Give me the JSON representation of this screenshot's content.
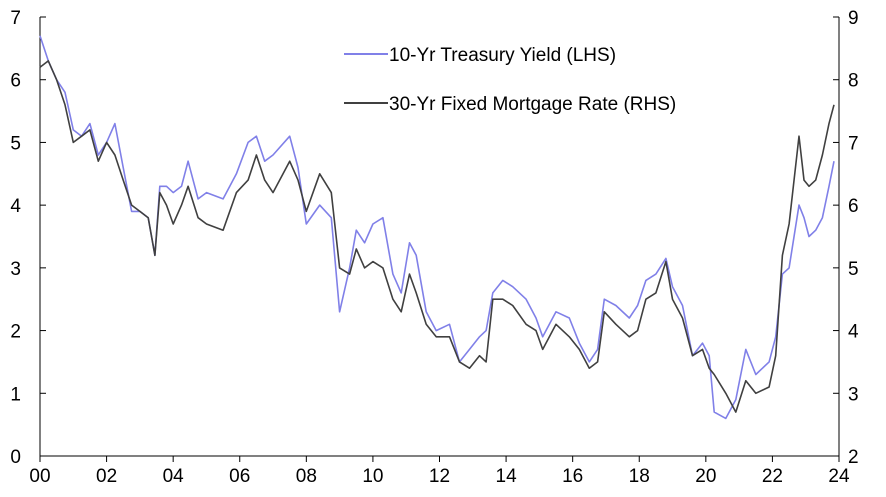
{
  "chart_data": {
    "type": "line",
    "x_unit": "year",
    "x_ticks": [
      {
        "value": 2000,
        "label": "00"
      },
      {
        "value": 2002,
        "label": "02"
      },
      {
        "value": 2004,
        "label": "04"
      },
      {
        "value": 2006,
        "label": "06"
      },
      {
        "value": 2008,
        "label": "08"
      },
      {
        "value": 2010,
        "label": "10"
      },
      {
        "value": 2012,
        "label": "12"
      },
      {
        "value": 2014,
        "label": "14"
      },
      {
        "value": 2016,
        "label": "16"
      },
      {
        "value": 2018,
        "label": "18"
      },
      {
        "value": 2020,
        "label": "20"
      },
      {
        "value": 2022,
        "label": "22"
      },
      {
        "value": 2024,
        "label": "24"
      }
    ],
    "xlim": [
      2000,
      2024
    ],
    "y_left": {
      "ylim": [
        0,
        7
      ],
      "ticks": [
        0,
        1,
        2,
        3,
        4,
        5,
        6,
        7
      ]
    },
    "y_right": {
      "ylim": [
        2,
        9
      ],
      "ticks": [
        2,
        3,
        4,
        5,
        6,
        7,
        8,
        9
      ]
    },
    "legend_position": "top-right",
    "grid": false,
    "series": [
      {
        "name": "10-Yr Treasury Yield (LHS)",
        "axis": "left",
        "color": "#8080e8",
        "points": [
          [
            2000.0,
            6.7
          ],
          [
            2000.25,
            6.3
          ],
          [
            2000.5,
            6.0
          ],
          [
            2000.75,
            5.8
          ],
          [
            2001.0,
            5.2
          ],
          [
            2001.25,
            5.1
          ],
          [
            2001.5,
            5.3
          ],
          [
            2001.75,
            4.8
          ],
          [
            2002.0,
            5.0
          ],
          [
            2002.25,
            5.3
          ],
          [
            2002.5,
            4.6
          ],
          [
            2002.75,
            3.9
          ],
          [
            2003.0,
            3.9
          ],
          [
            2003.25,
            3.8
          ],
          [
            2003.45,
            3.2
          ],
          [
            2003.6,
            4.3
          ],
          [
            2003.8,
            4.3
          ],
          [
            2004.0,
            4.2
          ],
          [
            2004.25,
            4.3
          ],
          [
            2004.45,
            4.7
          ],
          [
            2004.75,
            4.1
          ],
          [
            2005.0,
            4.2
          ],
          [
            2005.5,
            4.1
          ],
          [
            2005.9,
            4.5
          ],
          [
            2006.25,
            5.0
          ],
          [
            2006.5,
            5.1
          ],
          [
            2006.75,
            4.7
          ],
          [
            2007.0,
            4.8
          ],
          [
            2007.5,
            5.1
          ],
          [
            2007.75,
            4.6
          ],
          [
            2008.0,
            3.7
          ],
          [
            2008.4,
            4.0
          ],
          [
            2008.75,
            3.8
          ],
          [
            2009.0,
            2.3
          ],
          [
            2009.3,
            3.0
          ],
          [
            2009.5,
            3.6
          ],
          [
            2009.75,
            3.4
          ],
          [
            2010.0,
            3.7
          ],
          [
            2010.3,
            3.8
          ],
          [
            2010.6,
            2.9
          ],
          [
            2010.85,
            2.6
          ],
          [
            2011.1,
            3.4
          ],
          [
            2011.3,
            3.2
          ],
          [
            2011.6,
            2.3
          ],
          [
            2011.9,
            2.0
          ],
          [
            2012.3,
            2.1
          ],
          [
            2012.6,
            1.5
          ],
          [
            2012.9,
            1.7
          ],
          [
            2013.2,
            1.9
          ],
          [
            2013.4,
            2.0
          ],
          [
            2013.6,
            2.6
          ],
          [
            2013.9,
            2.8
          ],
          [
            2014.2,
            2.7
          ],
          [
            2014.6,
            2.5
          ],
          [
            2014.9,
            2.2
          ],
          [
            2015.1,
            1.9
          ],
          [
            2015.5,
            2.3
          ],
          [
            2015.9,
            2.2
          ],
          [
            2016.2,
            1.8
          ],
          [
            2016.5,
            1.5
          ],
          [
            2016.75,
            1.7
          ],
          [
            2016.95,
            2.5
          ],
          [
            2017.3,
            2.4
          ],
          [
            2017.7,
            2.2
          ],
          [
            2017.95,
            2.4
          ],
          [
            2018.2,
            2.8
          ],
          [
            2018.5,
            2.9
          ],
          [
            2018.8,
            3.15
          ],
          [
            2019.0,
            2.7
          ],
          [
            2019.3,
            2.4
          ],
          [
            2019.6,
            1.6
          ],
          [
            2019.9,
            1.8
          ],
          [
            2020.1,
            1.6
          ],
          [
            2020.25,
            0.7
          ],
          [
            2020.6,
            0.6
          ],
          [
            2020.9,
            0.9
          ],
          [
            2021.2,
            1.7
          ],
          [
            2021.5,
            1.3
          ],
          [
            2021.9,
            1.5
          ],
          [
            2022.1,
            1.9
          ],
          [
            2022.3,
            2.9
          ],
          [
            2022.5,
            3.0
          ],
          [
            2022.8,
            4.0
          ],
          [
            2022.95,
            3.8
          ],
          [
            2023.1,
            3.5
          ],
          [
            2023.3,
            3.6
          ],
          [
            2023.5,
            3.8
          ],
          [
            2023.7,
            4.3
          ],
          [
            2023.85,
            4.7
          ]
        ]
      },
      {
        "name": "30-Yr Fixed Mortgage Rate (RHS)",
        "axis": "right",
        "color": "#404040",
        "points": [
          [
            2000.0,
            8.2
          ],
          [
            2000.25,
            8.3
          ],
          [
            2000.5,
            8.0
          ],
          [
            2000.75,
            7.6
          ],
          [
            2001.0,
            7.0
          ],
          [
            2001.25,
            7.1
          ],
          [
            2001.5,
            7.2
          ],
          [
            2001.75,
            6.7
          ],
          [
            2002.0,
            7.0
          ],
          [
            2002.25,
            6.8
          ],
          [
            2002.5,
            6.4
          ],
          [
            2002.75,
            6.0
          ],
          [
            2003.0,
            5.9
          ],
          [
            2003.25,
            5.8
          ],
          [
            2003.45,
            5.2
          ],
          [
            2003.6,
            6.2
          ],
          [
            2003.8,
            6.0
          ],
          [
            2004.0,
            5.7
          ],
          [
            2004.25,
            6.0
          ],
          [
            2004.45,
            6.3
          ],
          [
            2004.75,
            5.8
          ],
          [
            2005.0,
            5.7
          ],
          [
            2005.5,
            5.6
          ],
          [
            2005.9,
            6.2
          ],
          [
            2006.25,
            6.4
          ],
          [
            2006.5,
            6.8
          ],
          [
            2006.75,
            6.4
          ],
          [
            2007.0,
            6.2
          ],
          [
            2007.5,
            6.7
          ],
          [
            2007.75,
            6.4
          ],
          [
            2008.0,
            5.9
          ],
          [
            2008.4,
            6.5
          ],
          [
            2008.75,
            6.2
          ],
          [
            2009.0,
            5.0
          ],
          [
            2009.3,
            4.9
          ],
          [
            2009.5,
            5.3
          ],
          [
            2009.75,
            5.0
          ],
          [
            2010.0,
            5.1
          ],
          [
            2010.3,
            5.0
          ],
          [
            2010.6,
            4.5
          ],
          [
            2010.85,
            4.3
          ],
          [
            2011.1,
            4.9
          ],
          [
            2011.3,
            4.6
          ],
          [
            2011.6,
            4.1
          ],
          [
            2011.9,
            3.9
          ],
          [
            2012.3,
            3.9
          ],
          [
            2012.6,
            3.5
          ],
          [
            2012.9,
            3.4
          ],
          [
            2013.2,
            3.6
          ],
          [
            2013.4,
            3.5
          ],
          [
            2013.6,
            4.5
          ],
          [
            2013.9,
            4.5
          ],
          [
            2014.2,
            4.4
          ],
          [
            2014.6,
            4.1
          ],
          [
            2014.9,
            4.0
          ],
          [
            2015.1,
            3.7
          ],
          [
            2015.5,
            4.1
          ],
          [
            2015.9,
            3.9
          ],
          [
            2016.2,
            3.7
          ],
          [
            2016.5,
            3.4
          ],
          [
            2016.75,
            3.5
          ],
          [
            2016.95,
            4.3
          ],
          [
            2017.3,
            4.1
          ],
          [
            2017.7,
            3.9
          ],
          [
            2017.95,
            4.0
          ],
          [
            2018.2,
            4.5
          ],
          [
            2018.5,
            4.6
          ],
          [
            2018.8,
            5.1
          ],
          [
            2019.0,
            4.5
          ],
          [
            2019.3,
            4.2
          ],
          [
            2019.6,
            3.6
          ],
          [
            2019.9,
            3.7
          ],
          [
            2020.1,
            3.4
          ],
          [
            2020.25,
            3.3
          ],
          [
            2020.6,
            3.0
          ],
          [
            2020.9,
            2.7
          ],
          [
            2021.2,
            3.2
          ],
          [
            2021.5,
            3.0
          ],
          [
            2021.9,
            3.1
          ],
          [
            2022.1,
            3.6
          ],
          [
            2022.3,
            5.2
          ],
          [
            2022.5,
            5.7
          ],
          [
            2022.8,
            7.1
          ],
          [
            2022.95,
            6.4
          ],
          [
            2023.1,
            6.3
          ],
          [
            2023.3,
            6.4
          ],
          [
            2023.5,
            6.8
          ],
          [
            2023.7,
            7.3
          ],
          [
            2023.85,
            7.6
          ]
        ]
      }
    ]
  }
}
